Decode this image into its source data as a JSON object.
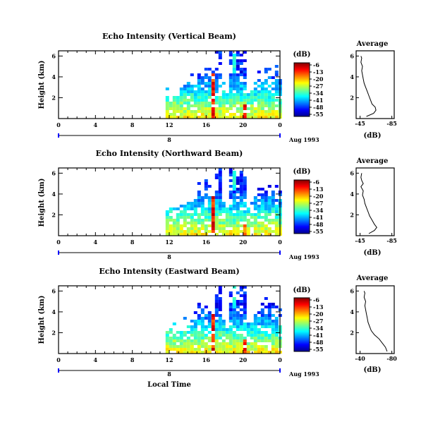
{
  "chart_data": [
    {
      "type": "heatmap",
      "title": "Echo Intensity (Vertical Beam)",
      "ylabel": "Height (km)",
      "xticks": [
        "0",
        "4",
        "8",
        "12",
        "16",
        "20",
        "0"
      ],
      "yticks": [
        "2",
        "4",
        "6"
      ],
      "date_label": "8",
      "month_label": "Aug 1993",
      "colorbar": {
        "unit": "(dB)",
        "ticks": [
          "-6",
          "-13",
          "-20",
          "-27",
          "-34",
          "-41",
          "-48",
          "-55"
        ]
      },
      "profile": {
        "title": "Average",
        "xlabel": "(dB)",
        "xticks": [
          "-45",
          "-85"
        ],
        "yticks": [
          "2",
          "4",
          "6"
        ],
        "points": [
          [
            -53,
            0.2
          ],
          [
            -62,
            0.5
          ],
          [
            -65,
            0.8
          ],
          [
            -64,
            1.1
          ],
          [
            -60,
            1.4
          ],
          [
            -58,
            1.8
          ],
          [
            -56,
            2.2
          ],
          [
            -54,
            2.6
          ],
          [
            -52,
            3.0
          ],
          [
            -50,
            3.4
          ],
          [
            -49,
            3.8
          ],
          [
            -48,
            4.2
          ],
          [
            -47,
            4.6
          ],
          [
            -48,
            5.0
          ],
          [
            -46,
            5.4
          ],
          [
            -47,
            5.8
          ],
          [
            -46,
            6.0
          ]
        ]
      }
    },
    {
      "type": "heatmap",
      "title": "Echo Intensity (Northward Beam)",
      "ylabel": "Height (km)",
      "xticks": [
        "0",
        "4",
        "8",
        "12",
        "16",
        "20",
        "0"
      ],
      "yticks": [
        "2",
        "4",
        "6"
      ],
      "date_label": "8",
      "month_label": "Aug 1993",
      "colorbar": {
        "unit": "(dB)",
        "ticks": [
          "-6",
          "-13",
          "-20",
          "-27",
          "-34",
          "-41",
          "-48",
          "-55"
        ]
      },
      "profile": {
        "title": "Average",
        "xlabel": "(dB)",
        "xticks": [
          "-45",
          "-85"
        ],
        "yticks": [
          "2",
          "4",
          "6"
        ],
        "points": [
          [
            -56,
            0.2
          ],
          [
            -63,
            0.5
          ],
          [
            -66,
            0.8
          ],
          [
            -63,
            1.1
          ],
          [
            -60,
            1.5
          ],
          [
            -57,
            1.9
          ],
          [
            -55,
            2.3
          ],
          [
            -53,
            2.7
          ],
          [
            -51,
            3.1
          ],
          [
            -50,
            3.5
          ],
          [
            -48,
            3.9
          ],
          [
            -49,
            4.3
          ],
          [
            -46,
            4.7
          ],
          [
            -49,
            5.0
          ],
          [
            -47,
            5.3
          ],
          [
            -46,
            5.6
          ],
          [
            -47,
            6.0
          ]
        ]
      }
    },
    {
      "type": "heatmap",
      "title": "Echo Intensity (Eastward Beam)",
      "ylabel": "Height (km)",
      "xticks": [
        "0",
        "4",
        "8",
        "12",
        "16",
        "20",
        "0"
      ],
      "yticks": [
        "2",
        "4",
        "6"
      ],
      "date_label": "8",
      "month_label": "Aug 1993",
      "xlabel": "Local Time",
      "colorbar": {
        "unit": "(dB)",
        "ticks": [
          "-6",
          "-13",
          "-20",
          "-27",
          "-34",
          "-41",
          "-48",
          "-55"
        ]
      },
      "profile": {
        "title": "Average",
        "xlabel": "(dB)",
        "xticks": [
          "-40",
          "-80"
        ],
        "yticks": [
          "2",
          "4",
          "6"
        ],
        "points": [
          [
            -74,
            0.2
          ],
          [
            -72,
            0.6
          ],
          [
            -68,
            1.0
          ],
          [
            -64,
            1.4
          ],
          [
            -58,
            1.8
          ],
          [
            -54,
            2.2
          ],
          [
            -52,
            2.6
          ],
          [
            -50,
            3.0
          ],
          [
            -49,
            3.4
          ],
          [
            -48,
            3.8
          ],
          [
            -47,
            4.2
          ],
          [
            -46,
            4.6
          ],
          [
            -47,
            5.0
          ],
          [
            -45,
            5.4
          ],
          [
            -46,
            5.8
          ],
          [
            -45,
            6.0
          ]
        ]
      }
    }
  ]
}
